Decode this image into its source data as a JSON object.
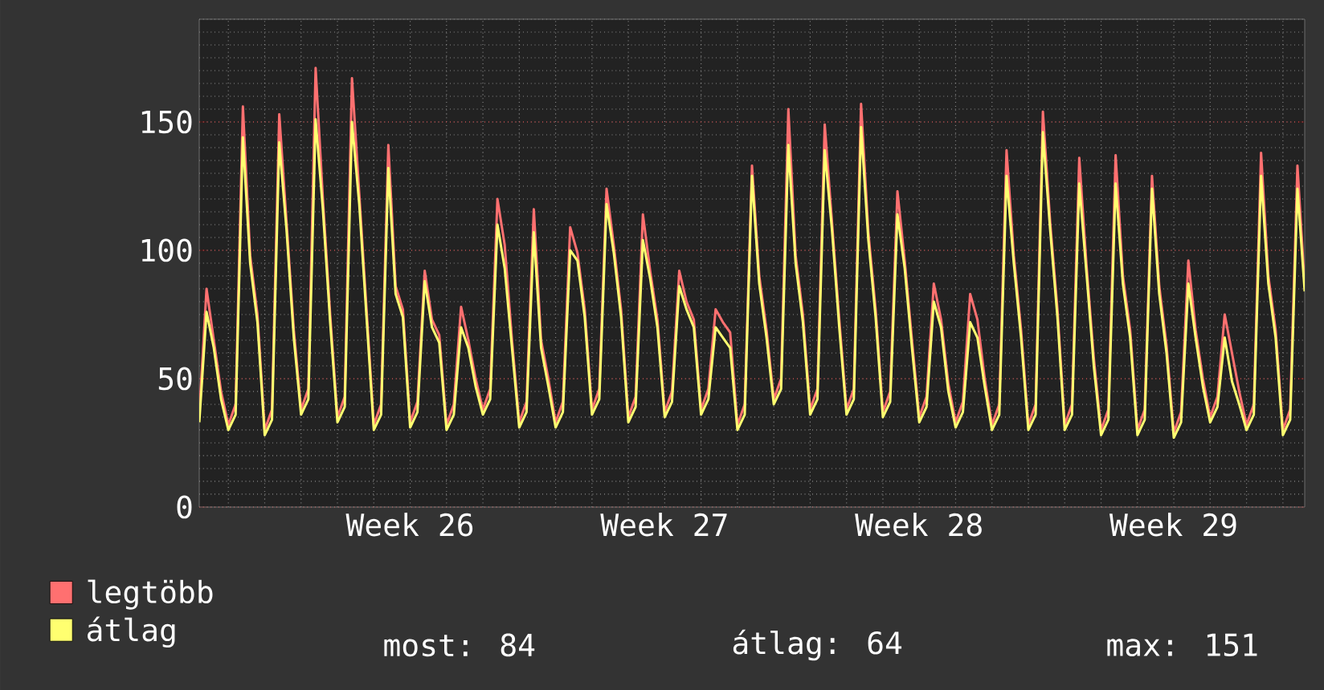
{
  "chart_data": {
    "type": "line",
    "categories": [
      null,
      null,
      null,
      null,
      null,
      null,
      null,
      null,
      null,
      null,
      null,
      null,
      null,
      null,
      null,
      null,
      null,
      null,
      null,
      null,
      null,
      null,
      null,
      null,
      null,
      null,
      null,
      null,
      null,
      "Week 26",
      null,
      null,
      null,
      null,
      null,
      null,
      null,
      null,
      null,
      null,
      null,
      null,
      null,
      null,
      null,
      null,
      null,
      null,
      null,
      null,
      null,
      null,
      null,
      null,
      null,
      null,
      null,
      null,
      null,
      null,
      null,
      null,
      null,
      null,
      "Week 27",
      null,
      null,
      null,
      null,
      null,
      null,
      null,
      null,
      null,
      null,
      null,
      null,
      null,
      null,
      null,
      null,
      null,
      null,
      null,
      null,
      null,
      null,
      null,
      null,
      null,
      null,
      null,
      null,
      null,
      null,
      null,
      null,
      null,
      null,
      "Week 28",
      null,
      null,
      null,
      null,
      null,
      null,
      null,
      null,
      null,
      null,
      null,
      null,
      null,
      null,
      null,
      null,
      null,
      null,
      null,
      null,
      null,
      null,
      null,
      null,
      null,
      null,
      null,
      null,
      null,
      null,
      null,
      null,
      null,
      null,
      "Week 29",
      null,
      null,
      null,
      null,
      null,
      null,
      null,
      null,
      null,
      null,
      null,
      null,
      null,
      null,
      null,
      null,
      null,
      null
    ],
    "series": [
      {
        "name": "legtöbb",
        "color": "#ff7070",
        "values": [
          36,
          85,
          65,
          45,
          32,
          40,
          156,
          98,
          75,
          30,
          38,
          153,
          111,
          69,
          38,
          46,
          171,
          120,
          75,
          35,
          43,
          167,
          122,
          77,
          32,
          40,
          141,
          86,
          77,
          33,
          41,
          92,
          73,
          67,
          32,
          40,
          78,
          65,
          50,
          38,
          46,
          120,
          102,
          65,
          33,
          41,
          116,
          65,
          50,
          33,
          41,
          109,
          99,
          77,
          38,
          46,
          124,
          102,
          77,
          35,
          43,
          114,
          92,
          73,
          37,
          45,
          92,
          80,
          73,
          38,
          46,
          77,
          72,
          68,
          32,
          40,
          133,
          90,
          69,
          42,
          50,
          155,
          98,
          75,
          38,
          46,
          149,
          111,
          73,
          38,
          46,
          157,
          107,
          77,
          37,
          45,
          123,
          96,
          65,
          35,
          43,
          87,
          73,
          48,
          33,
          41,
          83,
          73,
          50,
          32,
          40,
          139,
          98,
          69,
          32,
          40,
          154,
          111,
          77,
          32,
          40,
          136,
          94,
          58,
          30,
          38,
          137,
          90,
          69,
          30,
          38,
          129,
          86,
          63,
          29,
          37,
          96,
          69,
          50,
          35,
          43,
          75,
          60,
          45,
          32,
          40,
          138,
          90,
          69,
          30,
          38,
          133,
          86
        ]
      },
      {
        "name": "átlag",
        "color": "#ffff70",
        "values": [
          33,
          76,
          62,
          42,
          30,
          36,
          144,
          95,
          72,
          28,
          34,
          142,
          108,
          66,
          36,
          42,
          151,
          116,
          72,
          33,
          39,
          150,
          118,
          74,
          30,
          36,
          132,
          83,
          74,
          31,
          37,
          88,
          70,
          64,
          30,
          36,
          70,
          62,
          47,
          36,
          42,
          110,
          93,
          62,
          31,
          37,
          107,
          62,
          47,
          31,
          37,
          100,
          96,
          74,
          36,
          42,
          118,
          99,
          74,
          33,
          39,
          104,
          89,
          70,
          35,
          41,
          86,
          77,
          70,
          36,
          42,
          70,
          66,
          62,
          30,
          36,
          129,
          87,
          66,
          40,
          46,
          141,
          95,
          72,
          36,
          42,
          139,
          108,
          70,
          36,
          42,
          148,
          104,
          74,
          35,
          41,
          114,
          93,
          62,
          33,
          39,
          80,
          70,
          45,
          31,
          37,
          72,
          66,
          47,
          30,
          36,
          129,
          95,
          66,
          30,
          36,
          146,
          108,
          74,
          30,
          36,
          126,
          91,
          55,
          28,
          34,
          126,
          87,
          66,
          28,
          34,
          124,
          83,
          60,
          27,
          33,
          87,
          66,
          47,
          33,
          39,
          66,
          49,
          40,
          30,
          36,
          129,
          87,
          66,
          28,
          34,
          124,
          84
        ]
      }
    ],
    "ylim": [
      0,
      190
    ],
    "yticks": [
      0,
      50,
      100,
      150
    ],
    "grid": true,
    "legend": "bottom",
    "line_style": "solid",
    "annotations": [
      "most: 84",
      "átlag: 64",
      "max: 151"
    ]
  }
}
